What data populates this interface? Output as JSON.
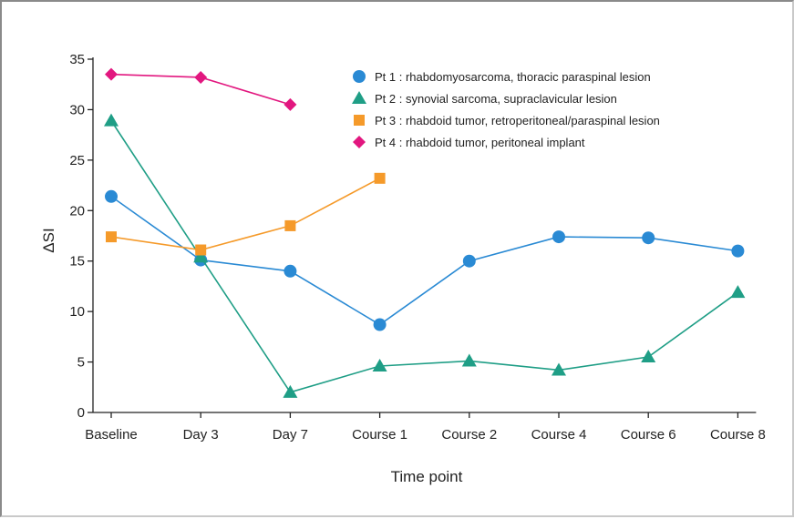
{
  "chart_data": {
    "type": "line",
    "title": "",
    "xlabel": "Time point",
    "ylabel": "ΔSI",
    "ylim": [
      0,
      35
    ],
    "yticks": [
      0,
      5,
      10,
      15,
      20,
      25,
      30,
      35
    ],
    "categories": [
      "Baseline",
      "Day 3",
      "Day 7",
      "Course 1",
      "Course 2",
      "Course 4",
      "Course 6",
      "Course 8"
    ],
    "grid": false,
    "legend_position": "top-right",
    "series": [
      {
        "name": "Pt 1 : rhabdomyosarcoma, thoracic paraspinal lesion",
        "color": "#2a8ad4",
        "marker": "circle",
        "values": [
          21.4,
          15.1,
          14.0,
          8.7,
          15.0,
          17.4,
          17.3,
          16.0
        ]
      },
      {
        "name": "Pt 2 : synovial sarcoma, supraclavicular lesion",
        "color": "#1f9e86",
        "marker": "triangle",
        "values": [
          28.9,
          15.4,
          2.0,
          4.6,
          5.1,
          4.2,
          5.5,
          11.9
        ]
      },
      {
        "name": "Pt 3 : rhabdoid tumor, retroperitoneal/paraspinal lesion",
        "color": "#f59a2a",
        "marker": "square",
        "values": [
          17.4,
          16.1,
          18.5,
          23.2,
          null,
          null,
          null,
          null
        ]
      },
      {
        "name": "Pt 4 : rhabdoid tumor, peritoneal implant",
        "color": "#e2177f",
        "marker": "diamond",
        "values": [
          33.5,
          33.2,
          30.5,
          null,
          null,
          null,
          null,
          null
        ]
      }
    ]
  }
}
